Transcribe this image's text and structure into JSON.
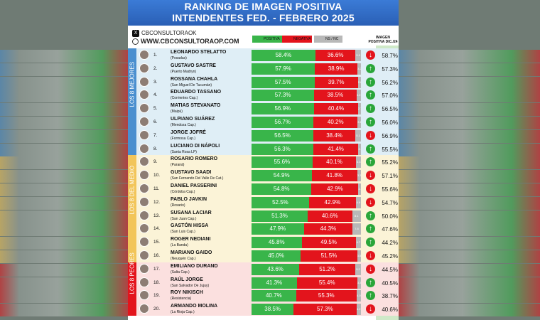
{
  "chart_data": {
    "type": "bar",
    "title": "RANKING DE IMAGEN POSITIVA",
    "subtitle": "INTENDENTES FED. - FEBRERO 2025",
    "legend": [
      "POSITIVA",
      "NEGATIVA",
      "NS / NC"
    ],
    "previous_label": "IMAGEN POSITIVA DIC./24",
    "groups": [
      {
        "label": "LOS 8 MEJORES",
        "color": "#4a8fcf",
        "bg": "#dfeef6"
      },
      {
        "label": "LOS 8 DEL MEDIO",
        "color": "#f2c55a",
        "bg": "#fbf3d7"
      },
      {
        "label": "LOS 8 PEORES",
        "color": "#e3141c",
        "bg": "#fbe0df"
      }
    ],
    "rows": [
      {
        "rank": "1.",
        "name": "LEONARDO STELATTO",
        "city": "(Posadas)",
        "positive": 58.4,
        "negative": 36.6,
        "ns": 5.0,
        "trend": "down",
        "previous": "58.7%",
        "group": 0
      },
      {
        "rank": "2.",
        "name": "GUSTAVO SASTRE",
        "city": "(Puerto Madryn)",
        "positive": 57.9,
        "negative": 38.9,
        "ns": 3.2,
        "trend": "up",
        "previous": "57.3%",
        "group": 0
      },
      {
        "rank": "3.",
        "name": "ROSSANA CHAHLA",
        "city": "(San Miguel De Tucumán)",
        "positive": 57.5,
        "negative": 39.7,
        "ns": 2.8,
        "trend": "up",
        "previous": "56.2%",
        "group": 0
      },
      {
        "rank": "4.",
        "name": "EDUARDO TASSANO",
        "city": "(Corrientes Cap.)",
        "positive": 57.3,
        "negative": 38.5,
        "ns": 4.2,
        "trend": "up",
        "previous": "57.0%",
        "group": 0
      },
      {
        "rank": "5.",
        "name": "MATIAS STEVANATO",
        "city": "(Maipú)",
        "positive": 56.9,
        "negative": 40.4,
        "ns": 2.7,
        "trend": "up",
        "previous": "56.5%",
        "group": 0
      },
      {
        "rank": "6.",
        "name": "ULPIANO SUÁREZ",
        "city": "(Mendoza Cap.)",
        "positive": 56.7,
        "negative": 40.2,
        "ns": 3.1,
        "trend": "up",
        "previous": "56.0%",
        "group": 0
      },
      {
        "rank": "7.",
        "name": "JORGE JOFRÉ",
        "city": "(Formosa Cap.)",
        "positive": 56.5,
        "negative": 38.4,
        "ns": 5.1,
        "trend": "down",
        "previous": "56.9%",
        "group": 0
      },
      {
        "rank": "8.",
        "name": "LUCIANO DI NÁPOLI",
        "city": "(Santa Rosa LP)",
        "positive": 56.3,
        "negative": 41.4,
        "ns": 2.3,
        "trend": "up",
        "previous": "55.5%",
        "group": 0
      },
      {
        "rank": "9.",
        "name": "ROSARIO ROMERO",
        "city": "(Paraná)",
        "positive": 55.6,
        "negative": 40.1,
        "ns": 4.3,
        "trend": "up",
        "previous": "55.2%",
        "group": 1
      },
      {
        "rank": "10.",
        "name": "GUSTAVO SAADI",
        "city": "(San Fernando Del Valle De Cat.)",
        "positive": 54.9,
        "negative": 41.8,
        "ns": 3.3,
        "trend": "down",
        "previous": "57.1%",
        "group": 1
      },
      {
        "rank": "11.",
        "name": "DANIEL PASSERINI",
        "city": "(Córdoba Cap.)",
        "positive": 54.8,
        "negative": 42.9,
        "ns": 2.3,
        "trend": "down",
        "previous": "55.6%",
        "group": 1
      },
      {
        "rank": "12.",
        "name": "PABLO JAVKIN",
        "city": "(Rosario)",
        "positive": 52.5,
        "negative": 42.9,
        "ns": 4.6,
        "trend": "down",
        "previous": "54.7%",
        "group": 1
      },
      {
        "rank": "13.",
        "name": "SUSANA LACIAR",
        "city": "(San Juan Cap.)",
        "positive": 51.3,
        "negative": 40.6,
        "ns": 8.1,
        "trend": "up",
        "previous": "50.0%",
        "group": 1
      },
      {
        "rank": "14.",
        "name": "GASTÓN HISSA",
        "city": "(San Luis Cap.)",
        "positive": 47.9,
        "negative": 44.3,
        "ns": 7.8,
        "trend": "up",
        "previous": "47.6%",
        "group": 1
      },
      {
        "rank": "15.",
        "name": "ROGER NEDIANI",
        "city": "(La Banda)",
        "positive": 45.8,
        "negative": 49.5,
        "ns": 4.7,
        "trend": "up",
        "previous": "44.2%",
        "group": 1
      },
      {
        "rank": "16.",
        "name": "MARIANO GAIDO",
        "city": "(Neuquén Cap.)",
        "positive": 45.0,
        "negative": 51.5,
        "ns": 3.5,
        "trend": "down",
        "previous": "45.2%",
        "group": 1
      },
      {
        "rank": "17.",
        "name": "EMILIANO DURAND",
        "city": "(Salta Cap.)",
        "positive": 43.6,
        "negative": 51.2,
        "ns": 5.2,
        "trend": "down",
        "previous": "44.5%",
        "group": 2
      },
      {
        "rank": "18.",
        "name": "RAÚL JORGE",
        "city": "(San Salvador De Jujuy)",
        "positive": 41.3,
        "negative": 55.4,
        "ns": 3.3,
        "trend": "up",
        "previous": "40.5%",
        "group": 2
      },
      {
        "rank": "19.",
        "name": "ROY NIKISCH",
        "city": "(Resistencia)",
        "positive": 40.7,
        "negative": 55.3,
        "ns": 4.0,
        "trend": "up",
        "previous": "38.7%",
        "group": 2
      },
      {
        "rank": "20.",
        "name": "ARMANDO MOLINA",
        "city": "(La Rioja Cap.)",
        "positive": 38.5,
        "negative": 57.3,
        "ns": 4.2,
        "trend": "down",
        "previous": "40.6%",
        "group": 2
      }
    ]
  },
  "brand": {
    "x_handle": "CBCONSULTORAOK",
    "website": "WWW.CBCONSULTORAOP.COM"
  },
  "colors": {
    "positive": "#39b54a",
    "negative": "#e3141c",
    "ns": "#b8b8b8",
    "up": "#2aa63a",
    "down": "#e3141c"
  }
}
